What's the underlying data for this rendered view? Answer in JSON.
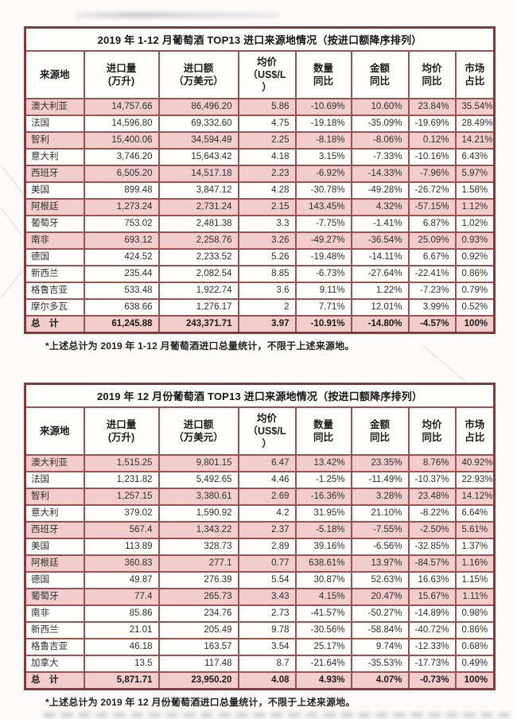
{
  "colors": {
    "table_border_outer": "#7e3c3c",
    "table_border_inner": "#9a5352",
    "row_highlight_pink": "#f3cdcd",
    "page_background": "#fbfaf9"
  },
  "columns": [
    "来源地",
    "进口量\n(万升)",
    "进口额\n（万美元）",
    "均价\n（US$/L\n）",
    "数量\n同比",
    "金额\n同比",
    "均价\n同比",
    "市场\n占比"
  ],
  "table1": {
    "title": "2019 年 1-12 月葡萄酒 TOP13 进口来源地情况（按进口额降序排列）",
    "rows": [
      [
        "澳大利亚",
        "14,757.66",
        "86,496.20",
        "5.86",
        "-10.69%",
        "10.60%",
        "23.84%",
        "35.54%",
        1
      ],
      [
        "法国",
        "14,596.80",
        "69,332.60",
        "4.75",
        "-19.18%",
        "-35.09%",
        "-19.69%",
        "28.49%",
        0
      ],
      [
        "智利",
        "15,400.06",
        "34,594.49",
        "2.25",
        "-8.18%",
        "-8.06%",
        "0.12%",
        "14.21%",
        1
      ],
      [
        "意大利",
        "3,746.20",
        "15,643.42",
        "4.18",
        "3.15%",
        "-7.33%",
        "-10.16%",
        "6.43%",
        0
      ],
      [
        "西班牙",
        "6,505.20",
        "14,517.18",
        "2.23",
        "-6.92%",
        "-14.33%",
        "-7.96%",
        "5.97%",
        1
      ],
      [
        "美国",
        "899.48",
        "3,847.12",
        "4.28",
        "-30.78%",
        "-49.28%",
        "-26.72%",
        "1.58%",
        0
      ],
      [
        "阿根廷",
        "1,273.24",
        "2,731.24",
        "2.15",
        "143.45%",
        "4.32%",
        "-57.15%",
        "1.12%",
        1
      ],
      [
        "葡萄牙",
        "753.02",
        "2,481.38",
        "3.3",
        "-7.75%",
        "-1.41%",
        "6.87%",
        "1.02%",
        0
      ],
      [
        "南非",
        "693.12",
        "2,258.76",
        "3.26",
        "-49.27%",
        "-36.54%",
        "25.09%",
        "0.93%",
        1
      ],
      [
        "德国",
        "424.52",
        "2,233.52",
        "5.26",
        "-19.48%",
        "-14.11%",
        "6.67%",
        "0.92%",
        0
      ],
      [
        "新西兰",
        "235.44",
        "2,082.54",
        "8.85",
        "-6.73%",
        "-27.64%",
        "-22.41%",
        "0.86%",
        0
      ],
      [
        "格鲁吉亚",
        "533.48",
        "1,922.74",
        "3.6",
        "9.11%",
        "1.22%",
        "-7.23%",
        "0.79%",
        0
      ],
      [
        "摩尔多瓦",
        "638.66",
        "1,276.17",
        "2",
        "7.71%",
        "12.01%",
        "3.99%",
        "0.52%",
        0
      ]
    ],
    "total": [
      "总　计",
      "61,245.88",
      "243,371.71",
      "3.97",
      "-10.91%",
      "-14.80%",
      "-4.57%",
      "100%",
      1
    ],
    "footnote": "*上述总计为 2019 年 1-12 月葡萄酒进口总量统计，不限于上述来源地。"
  },
  "table2": {
    "title": "2019 年 12 月份葡萄酒 TOP13 进口来源地情况（按进口额降序排列）",
    "rows": [
      [
        "澳大利亚",
        "1,515.25",
        "9,801.15",
        "6.47",
        "13.42%",
        "23.35%",
        "8.76%",
        "40.92%",
        1
      ],
      [
        "法国",
        "1,231.82",
        "5,492.65",
        "4.46",
        "-1.25%",
        "-11.49%",
        "-10.37%",
        "22.93%",
        0
      ],
      [
        "智利",
        "1,257.15",
        "3,380.61",
        "2.69",
        "-16.36%",
        "3.28%",
        "23.48%",
        "14.12%",
        1
      ],
      [
        "意大利",
        "379.02",
        "1,590.92",
        "4.2",
        "31.95%",
        "21.10%",
        "-8.22%",
        "6.64%",
        0
      ],
      [
        "西班牙",
        "567.4",
        "1,343.22",
        "2.37",
        "-5.18%",
        "-7.55%",
        "-2.50%",
        "5.61%",
        1
      ],
      [
        "美国",
        "113.89",
        "328.73",
        "2.89",
        "39.16%",
        "-6.56%",
        "-32.85%",
        "1.37%",
        0
      ],
      [
        "阿根廷",
        "360.83",
        "277.1",
        "0.77",
        "638.61%",
        "13.97%",
        "-84.57%",
        "1.16%",
        1
      ],
      [
        "德国",
        "49.87",
        "276.39",
        "5.54",
        "30.87%",
        "52.63%",
        "16.63%",
        "1.15%",
        0
      ],
      [
        "葡萄牙",
        "77.4",
        "265.73",
        "3.43",
        "4.15%",
        "20.47%",
        "15.67%",
        "1.11%",
        1
      ],
      [
        "南非",
        "85.86",
        "234.76",
        "2.73",
        "-41.57%",
        "-50.27%",
        "-14.89%",
        "0.98%",
        0
      ],
      [
        "新西兰",
        "21.01",
        "205.49",
        "9.78",
        "-30.56%",
        "-58.84%",
        "-40.72%",
        "0.86%",
        0
      ],
      [
        "格鲁吉亚",
        "46.18",
        "163.57",
        "3.54",
        "25.17%",
        "9.74%",
        "-12.33%",
        "0.68%",
        0
      ],
      [
        "加拿大",
        "13.5",
        "117.48",
        "8.7",
        "-21.64%",
        "-35.53%",
        "-17.73%",
        "0.49%",
        0
      ]
    ],
    "total": [
      "总　计",
      "5,871.71",
      "23,950.20",
      "4.08",
      "4.93%",
      "4.07%",
      "-0.73%",
      "100%",
      1
    ],
    "footnote": "*上述总计为 2019 年 12 月份葡萄酒进口总量统计，不限于上述来源地。"
  }
}
